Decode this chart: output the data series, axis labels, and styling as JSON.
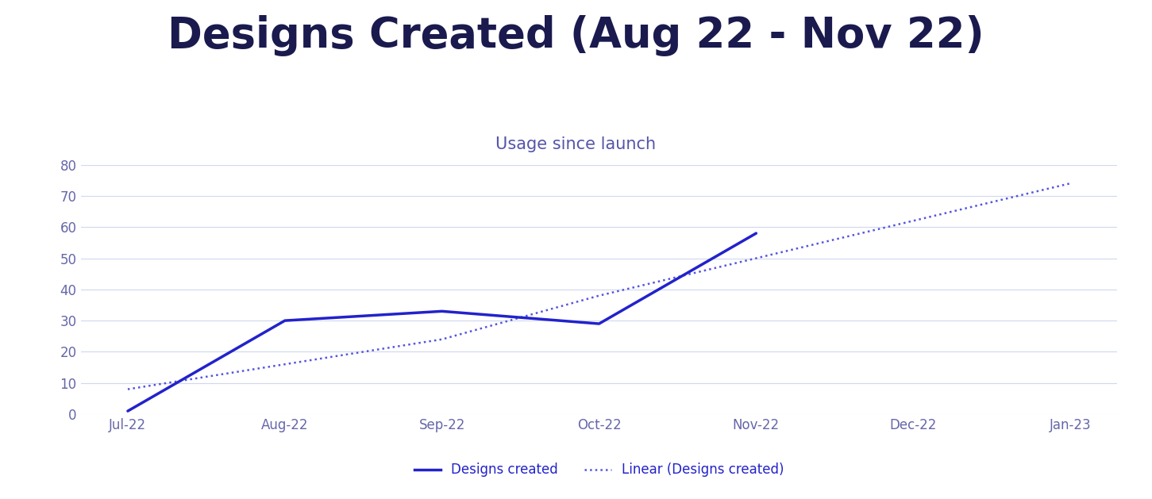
{
  "title": "Designs Created (Aug 22 - Nov 22)",
  "subtitle": "Usage since launch",
  "title_color": "#1a1a4e",
  "subtitle_color": "#5555aa",
  "background_color": "#ffffff",
  "x_labels": [
    "Jul-22",
    "Aug-22",
    "Sep-22",
    "Oct-22",
    "Nov-22",
    "Dec-22",
    "Jan-23"
  ],
  "y_data": [
    1,
    30,
    33,
    29,
    58,
    null,
    null
  ],
  "linear_y": [
    8,
    16,
    24,
    38,
    50,
    62,
    74
  ],
  "line_color": "#2222cc",
  "linear_color": "#5555dd",
  "ylim": [
    0,
    80
  ],
  "yticks": [
    0,
    10,
    20,
    30,
    40,
    50,
    60,
    70,
    80
  ],
  "grid_color": "#d0d8ee",
  "axis_label_color": "#6666aa",
  "axis_label_fontsize": 12,
  "title_fontsize": 38,
  "subtitle_fontsize": 15,
  "legend_fontsize": 12,
  "legend_labels": [
    "Designs created",
    "Linear (Designs created)"
  ]
}
